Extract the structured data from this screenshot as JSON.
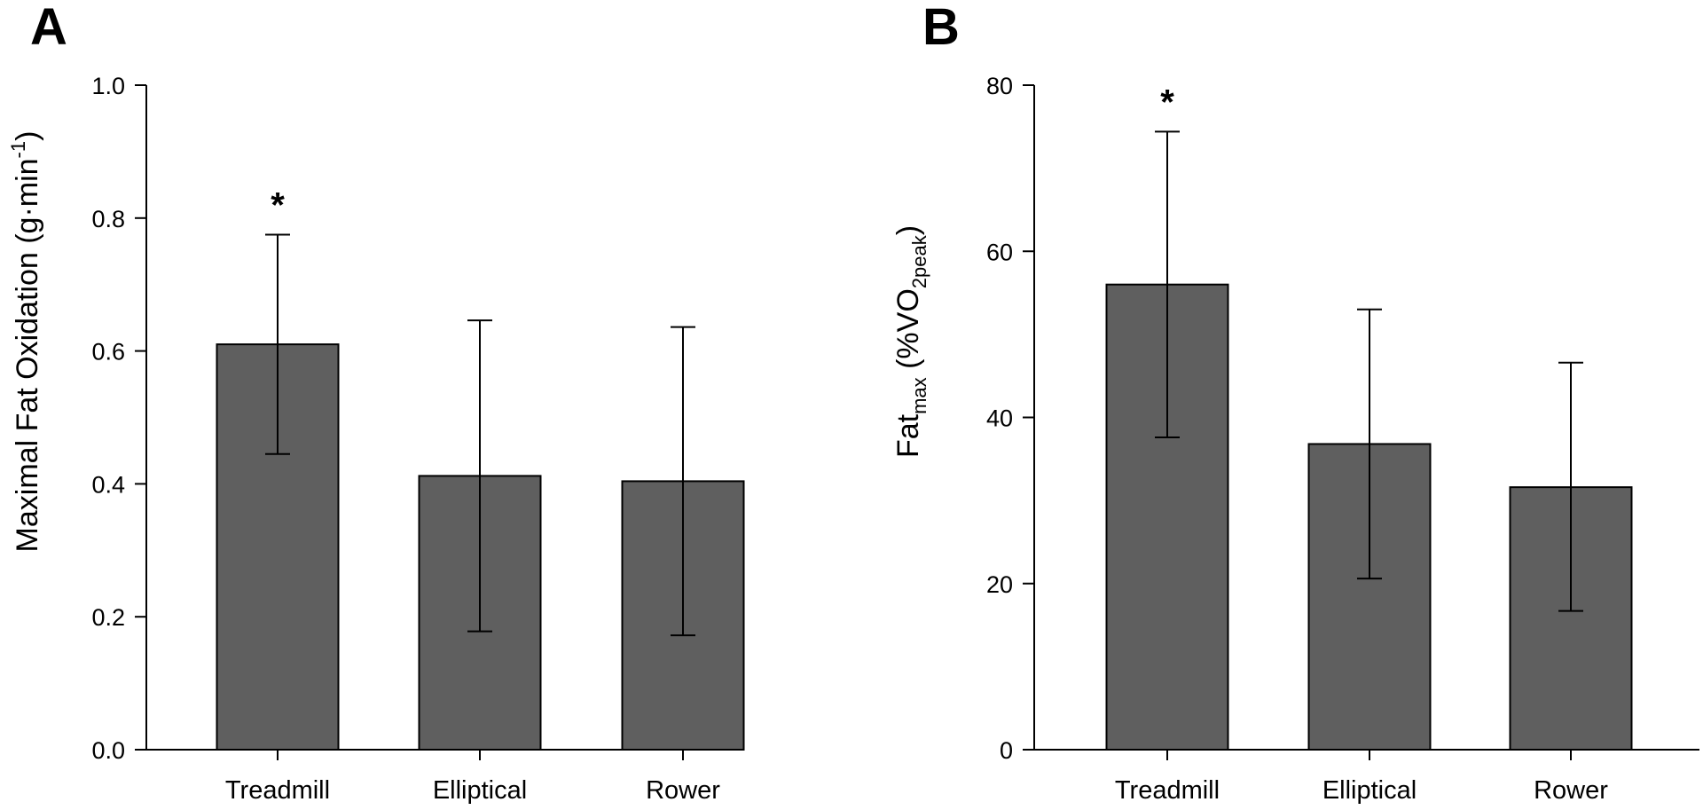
{
  "colors": {
    "bar_fill": "#5f5f5f",
    "axis": "#000000"
  },
  "chart_data": [
    {
      "type": "bar",
      "panel_label": "A",
      "categories": [
        "Treadmill",
        "Elliptical",
        "Rower"
      ],
      "values": [
        0.61,
        0.412,
        0.404
      ],
      "error_upper": [
        0.775,
        0.646,
        0.636
      ],
      "error_lower": [
        0.445,
        0.178,
        0.172
      ],
      "significance": [
        "*",
        "",
        ""
      ],
      "ylabel_main": "Maximal Fat Oxidation (g·min",
      "ylabel_sup": "-1",
      "ylabel_end": ")",
      "ylim": [
        0,
        1.0
      ],
      "yticks": [
        0.0,
        0.2,
        0.4,
        0.6,
        0.8,
        1.0
      ],
      "ytick_labels": [
        "0.0",
        "0.2",
        "0.4",
        "0.6",
        "0.8",
        "1.0"
      ]
    },
    {
      "type": "bar",
      "panel_label": "B",
      "categories": [
        "Treadmill",
        "Elliptical",
        "Rower"
      ],
      "values": [
        56,
        36.8,
        31.6
      ],
      "error_upper": [
        74.4,
        53,
        46.6
      ],
      "error_lower": [
        37.6,
        20.6,
        16.7
      ],
      "significance": [
        "*",
        "",
        ""
      ],
      "ylabel_main": "Fat",
      "ylabel_sub": "max",
      "ylabel_mid": " (%VO",
      "ylabel_sub2": "2peak",
      "ylabel_end": ")",
      "ylim": [
        0,
        80
      ],
      "yticks": [
        0,
        20,
        40,
        60,
        80
      ],
      "ytick_labels": [
        "0",
        "20",
        "40",
        "60",
        "80"
      ]
    }
  ]
}
